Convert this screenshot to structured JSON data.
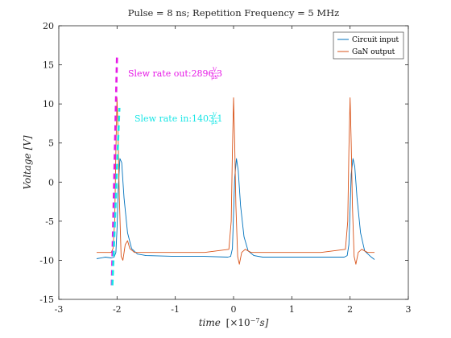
{
  "chart_data": {
    "type": "line",
    "title": "Pulse = 8 ns; Repetition Frequency = 5 MHz",
    "xlabel": "time",
    "xlabel_unit": "[×10",
    "xlabel_exp": "−7",
    "xlabel_tail": "s]",
    "ylabel": "Voltage [V]",
    "xlim": [
      -3,
      3
    ],
    "ylim": [
      -15,
      20
    ],
    "xticks": [
      -3,
      -2,
      -1,
      0,
      1,
      2,
      3
    ],
    "yticks": [
      -15,
      -10,
      -5,
      0,
      5,
      10,
      15,
      20
    ],
    "grid": false,
    "legend_position": "top-right",
    "series": [
      {
        "name": "Circuit input",
        "color": "#0072BD",
        "x": [
          -2.35,
          -2.2,
          -2.1,
          -2.05,
          -2.02,
          -2.0,
          -1.98,
          -1.95,
          -1.92,
          -1.88,
          -1.82,
          -1.75,
          -1.65,
          -1.5,
          -1.0,
          -0.5,
          -0.1,
          -0.05,
          -0.02,
          0.0,
          0.02,
          0.05,
          0.08,
          0.12,
          0.18,
          0.25,
          0.35,
          0.5,
          1.0,
          1.5,
          1.9,
          1.95,
          1.98,
          2.0,
          2.02,
          2.05,
          2.08,
          2.12,
          2.18,
          2.25,
          2.35,
          2.42
        ],
        "y": [
          -9.8,
          -9.6,
          -9.7,
          -9.6,
          -9.0,
          -6.0,
          -1.0,
          3.0,
          2.5,
          -2.0,
          -6.5,
          -8.5,
          -9.2,
          -9.4,
          -9.5,
          -9.5,
          -9.6,
          -9.5,
          -8.5,
          -4.0,
          0.5,
          3.0,
          1.5,
          -3.0,
          -7.0,
          -8.8,
          -9.4,
          -9.6,
          -9.6,
          -9.6,
          -9.6,
          -9.4,
          -8.0,
          -3.5,
          1.0,
          3.0,
          2.0,
          -2.0,
          -6.5,
          -8.8,
          -9.5,
          -9.9
        ]
      },
      {
        "name": "GaN output",
        "color": "#D95319",
        "x": [
          -2.35,
          -2.2,
          -2.1,
          -2.07,
          -2.04,
          -2.02,
          -2.0,
          -1.98,
          -1.96,
          -1.93,
          -1.9,
          -1.86,
          -1.82,
          -1.78,
          -1.7,
          -1.5,
          -1.0,
          -0.5,
          -0.08,
          -0.04,
          -0.02,
          0.0,
          0.02,
          0.04,
          0.07,
          0.1,
          0.14,
          0.2,
          0.3,
          0.5,
          1.0,
          1.5,
          1.92,
          1.96,
          1.98,
          2.0,
          2.02,
          2.04,
          2.07,
          2.1,
          2.14,
          2.2,
          2.3,
          2.42
        ],
        "y": [
          -9.0,
          -9.0,
          -9.0,
          -8.5,
          -5.0,
          4.0,
          10.8,
          5.0,
          -2.0,
          -9.5,
          -10.0,
          -8.0,
          -7.5,
          -8.5,
          -9.0,
          -9.0,
          -9.0,
          -9.0,
          -8.6,
          -5.0,
          4.0,
          10.8,
          5.0,
          -3.0,
          -9.5,
          -10.5,
          -9.0,
          -8.6,
          -9.0,
          -9.0,
          -9.0,
          -9.0,
          -8.6,
          -5.0,
          4.0,
          10.8,
          5.0,
          -3.0,
          -9.5,
          -10.5,
          -9.0,
          -8.6,
          -9.0,
          -9.0
        ]
      }
    ],
    "slew_lines": [
      {
        "color": "#e619e6",
        "x": [
          -2.09,
          -2.0
        ],
        "y": [
          -13.2,
          16.3
        ],
        "label_prefix": "Slew rate out:",
        "label_value": "2896.3",
        "unit_num": "V",
        "unit_den": "μs"
      },
      {
        "color": "#19e6e6",
        "x": [
          -2.08,
          -1.96
        ],
        "y": [
          -13.2,
          9.5
        ],
        "label_prefix": "Slew rate in:",
        "label_value": "1403.1",
        "unit_num": "V",
        "unit_den": "μs"
      }
    ]
  }
}
